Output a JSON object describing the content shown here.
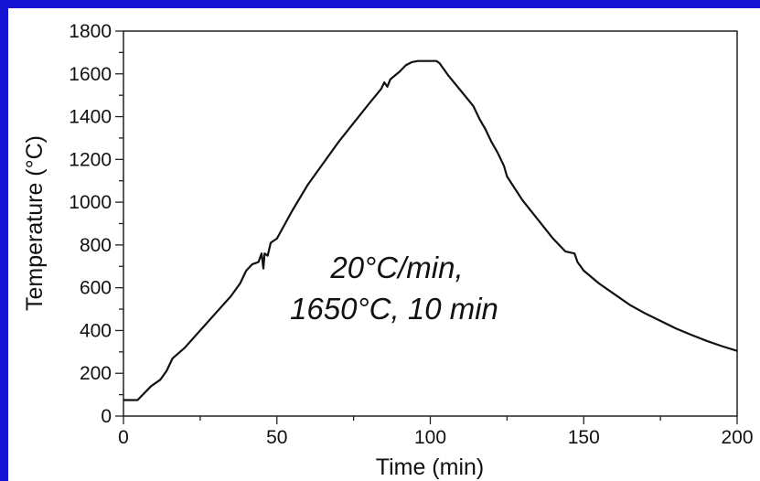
{
  "chart_data": {
    "type": "line",
    "xlabel": "Time (min)",
    "ylabel": "Temperature (°C)",
    "xlim": [
      0,
      200
    ],
    "ylim": [
      0,
      1800
    ],
    "x_ticks": [
      "0",
      "50",
      "100",
      "150",
      "200"
    ],
    "y_ticks": [
      "0",
      "200",
      "400",
      "600",
      "800",
      "1000",
      "1200",
      "1400",
      "1600",
      "1800"
    ],
    "annotation": [
      "20°C/min,",
      "1650°C, 10 min"
    ],
    "grid": false,
    "colors": {
      "frame": "#1414d2",
      "line": "#111111"
    },
    "series": [
      {
        "x": [
          0,
          4.6,
          9,
          12,
          14,
          16,
          20,
          25,
          30,
          35,
          38,
          40,
          42,
          44,
          45,
          45.6,
          46,
          47,
          48,
          50,
          55,
          60,
          65,
          70,
          75,
          80,
          84,
          85,
          86,
          87,
          90,
          92,
          94,
          96,
          100,
          101,
          102,
          103,
          104,
          106,
          110,
          114,
          116,
          118,
          120,
          122,
          124,
          125,
          130,
          135,
          140,
          144,
          147,
          148,
          150,
          155,
          160,
          165,
          170,
          175,
          180,
          185,
          190,
          195,
          200
        ],
        "y": [
          75,
          75,
          140,
          170,
          210,
          270,
          320,
          400,
          480,
          560,
          620,
          680,
          710,
          720,
          760,
          690,
          760,
          750,
          810,
          830,
          960,
          1080,
          1180,
          1280,
          1370,
          1460,
          1530,
          1560,
          1540,
          1575,
          1610,
          1640,
          1655,
          1660,
          1660,
          1660,
          1660,
          1650,
          1630,
          1590,
          1520,
          1450,
          1390,
          1340,
          1280,
          1230,
          1170,
          1120,
          1010,
          920,
          830,
          770,
          760,
          720,
          680,
          620,
          570,
          520,
          480,
          445,
          410,
          380,
          352,
          327,
          305
        ]
      }
    ]
  }
}
